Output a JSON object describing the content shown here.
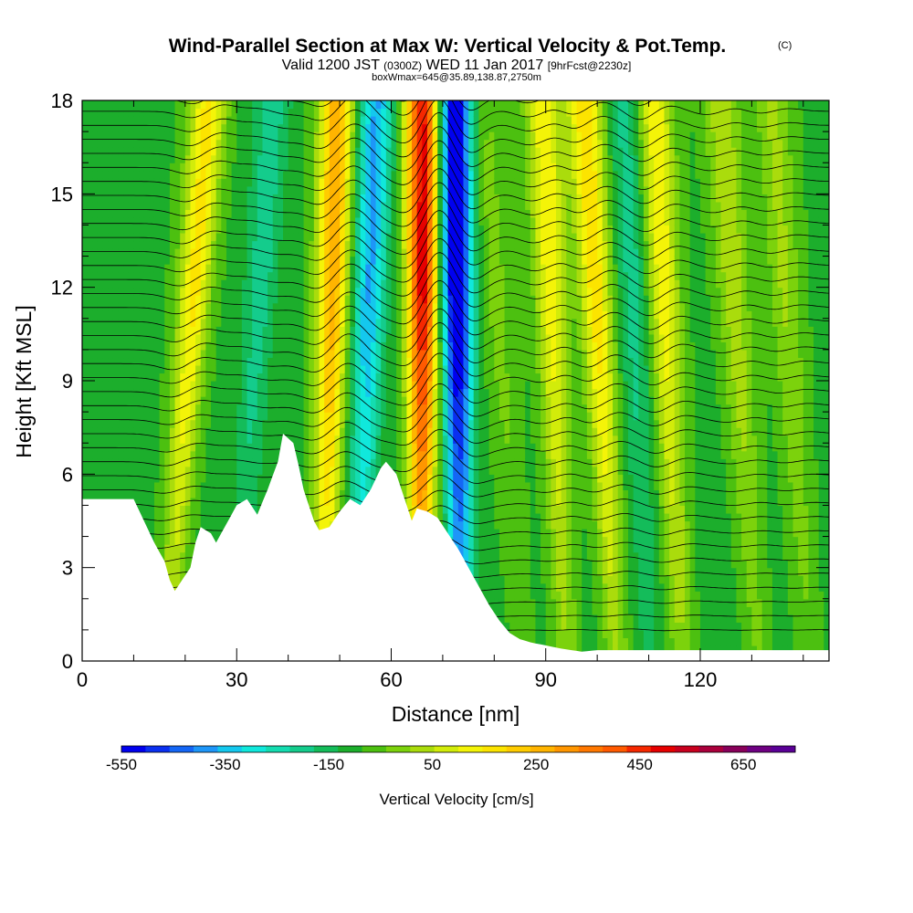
{
  "chart_data": {
    "type": "heatmap",
    "title": "Wind-Parallel Section at Max W: Vertical Velocity & Pot.Temp.",
    "title_mark": "(C)",
    "subtitle_parts": [
      "Valid 1200 JST",
      "(0300Z)",
      "WED 11 Jan 2017",
      "[9hrFcst@2230z]"
    ],
    "subtitle2": "boxWmax=645@35.89,138.87,2750m",
    "xlabel": "Distance [nm]",
    "ylabel": "Height [Kft MSL]",
    "xlim": [
      0,
      145
    ],
    "ylim": [
      0,
      18
    ],
    "x_ticks": [
      "0",
      "30",
      "60",
      "90",
      "120"
    ],
    "x_tick_values": [
      0,
      30,
      60,
      90,
      120
    ],
    "y_ticks": [
      "0",
      "3",
      "6",
      "9",
      "12",
      "15",
      "18"
    ],
    "y_tick_values": [
      0,
      3,
      6,
      9,
      12,
      15,
      18
    ],
    "colorbar": {
      "label": "Vertical Velocity [cm/s]",
      "min": -550,
      "max": 750,
      "step": 50,
      "tick_labels": [
        "-550",
        "-350",
        "-150",
        "50",
        "250",
        "450",
        "650"
      ],
      "tick_values": [
        -550,
        -350,
        -150,
        50,
        250,
        450,
        650
      ],
      "colors": [
        "#0000ee",
        "#0a30f0",
        "#1466f5",
        "#1e96f8",
        "#14c8ee",
        "#10e8dc",
        "#14dcb0",
        "#14cc8c",
        "#14bc5a",
        "#1cae2c",
        "#4cc010",
        "#7cd20c",
        "#aadc0c",
        "#d2ec0a",
        "#f4f408",
        "#fce400",
        "#ffcc00",
        "#ffb400",
        "#ff9600",
        "#ff7800",
        "#ff5a00",
        "#f52800",
        "#e60000",
        "#c8001e",
        "#aa003c",
        "#88005a",
        "#6e0082",
        "#5a0096"
      ]
    },
    "velocity_bands": [
      {
        "x": 20,
        "w": 280,
        "tilt": 0.45
      },
      {
        "x": 33,
        "w": -120,
        "tilt": 0.4
      },
      {
        "x": 48,
        "w": 400,
        "tilt": 0.15
      },
      {
        "x": 55,
        "w": -300,
        "tilt": 0.2
      },
      {
        "x": 66,
        "w": 645,
        "tilt": 0.03
      },
      {
        "x": 73,
        "w": -550,
        "tilt": -0.08
      },
      {
        "x": 82,
        "w": 80,
        "tilt": -0.45
      },
      {
        "x": 92,
        "w": 250,
        "tilt": -0.25
      },
      {
        "x": 101,
        "w": 300,
        "tilt": -0.35
      },
      {
        "x": 108,
        "w": -120,
        "tilt": -0.25
      },
      {
        "x": 114,
        "w": 250,
        "tilt": -0.3
      },
      {
        "x": 128,
        "w": 150,
        "tilt": -0.4
      },
      {
        "x": 138,
        "w": 120,
        "tilt": -0.4
      }
    ],
    "terrain": [
      [
        0,
        5.2
      ],
      [
        6,
        5.2
      ],
      [
        10,
        5.2
      ],
      [
        12,
        4.5
      ],
      [
        14,
        3.8
      ],
      [
        16,
        3.2
      ],
      [
        17,
        2.6
      ],
      [
        18,
        2.25
      ],
      [
        19,
        2.5
      ],
      [
        21,
        3.0
      ],
      [
        22,
        3.8
      ],
      [
        23,
        4.3
      ],
      [
        25,
        4.1
      ],
      [
        26,
        3.8
      ],
      [
        28,
        4.4
      ],
      [
        30,
        5.0
      ],
      [
        32,
        5.2
      ],
      [
        34,
        4.7
      ],
      [
        36,
        5.5
      ],
      [
        38,
        6.4
      ],
      [
        39,
        7.3
      ],
      [
        41,
        7.0
      ],
      [
        42,
        6.3
      ],
      [
        43,
        5.5
      ],
      [
        44,
        5.0
      ],
      [
        45,
        4.5
      ],
      [
        46,
        4.2
      ],
      [
        48,
        4.3
      ],
      [
        50,
        4.8
      ],
      [
        52,
        5.2
      ],
      [
        54,
        5.0
      ],
      [
        56,
        5.5
      ],
      [
        58,
        6.2
      ],
      [
        59,
        6.4
      ],
      [
        61,
        6.0
      ],
      [
        62,
        5.5
      ],
      [
        63,
        5.0
      ],
      [
        64,
        4.5
      ],
      [
        65,
        4.9
      ],
      [
        67,
        4.8
      ],
      [
        69,
        4.6
      ],
      [
        71,
        4.1
      ],
      [
        73,
        3.6
      ],
      [
        75,
        3.0
      ],
      [
        77,
        2.4
      ],
      [
        79,
        1.8
      ],
      [
        81,
        1.3
      ],
      [
        83,
        0.9
      ],
      [
        85,
        0.7
      ],
      [
        87,
        0.6
      ],
      [
        90,
        0.5
      ],
      [
        93,
        0.4
      ],
      [
        95,
        0.35
      ],
      [
        97,
        0.3
      ],
      [
        100,
        0.35
      ],
      [
        120,
        0.35
      ],
      [
        145,
        0.35
      ]
    ]
  }
}
